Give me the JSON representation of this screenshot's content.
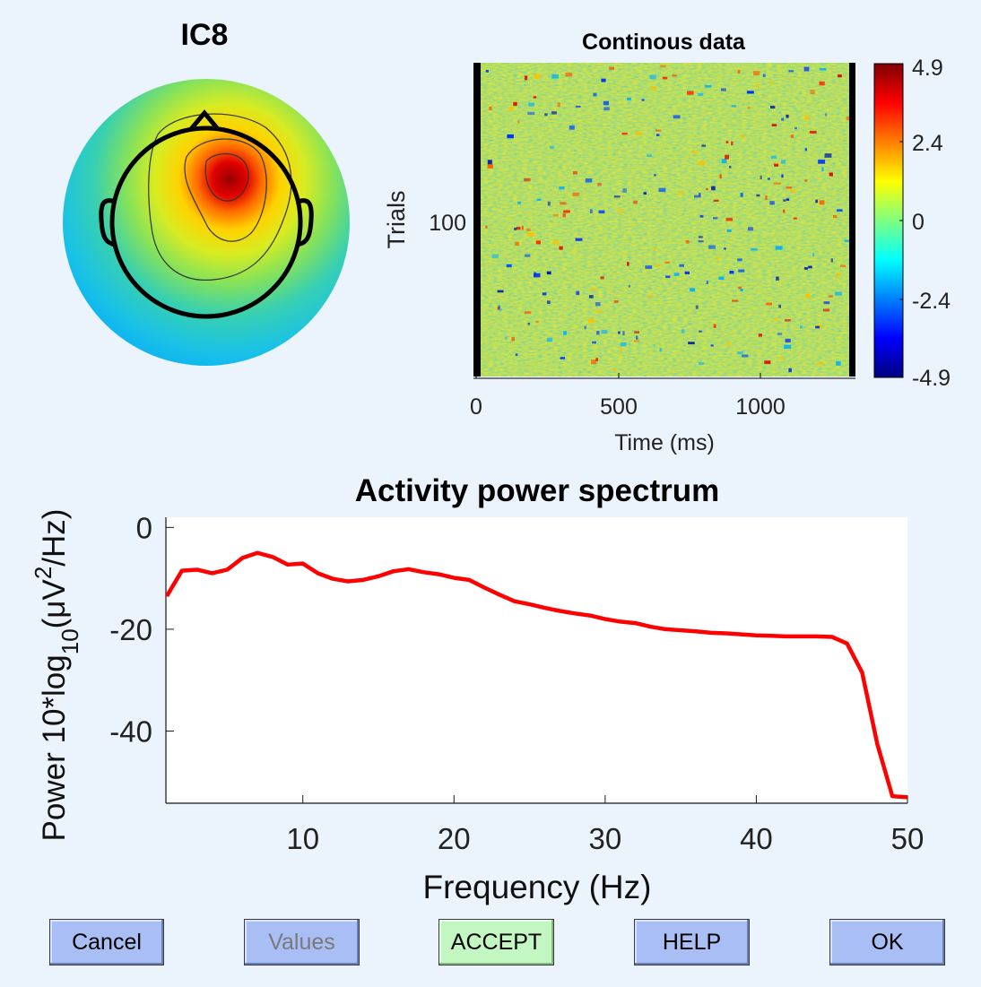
{
  "component": {
    "title": "IC8"
  },
  "erp_image": {
    "title": "Continous data",
    "ylabel": "Trials",
    "xlabel": "Time (ms)",
    "ytick": "100",
    "xticks": [
      "0",
      "500",
      "1000"
    ],
    "colorbar_ticks": [
      "4.9",
      "2.4",
      "0",
      "-2.4",
      "-4.9"
    ]
  },
  "spectrum": {
    "title": "Activity power spectrum",
    "xlabel": "Frequency (Hz)",
    "ylabel_parts": [
      "Power 10*log",
      "10",
      "(μV",
      "2",
      "/Hz)"
    ],
    "line_color": "#FF0000"
  },
  "buttons": {
    "cancel": "Cancel",
    "values": "Values",
    "accept": "ACCEPT",
    "help": "HELP",
    "ok": "OK"
  },
  "chart_data": [
    {
      "type": "line",
      "title": "Activity power spectrum",
      "xlabel": "Frequency (Hz)",
      "ylabel": "Power 10*log10(μV2/Hz)",
      "xlim": [
        1,
        50
      ],
      "ylim": [
        -54,
        2
      ],
      "xticks": [
        10,
        20,
        30,
        40,
        50
      ],
      "yticks": [
        0,
        -20,
        -40
      ],
      "series": [
        {
          "color": "#FF0000",
          "x": [
            1,
            2,
            3,
            4,
            5,
            6,
            7,
            8,
            9,
            10,
            11,
            12,
            13,
            14,
            15,
            16,
            17,
            18,
            19,
            20,
            21,
            22,
            23,
            24,
            25,
            26,
            27,
            28,
            29,
            30,
            31,
            32,
            33,
            34,
            35,
            36,
            37,
            38,
            39,
            40,
            41,
            42,
            43,
            44,
            45,
            46,
            47,
            48,
            49,
            50
          ],
          "y": [
            -13.5,
            -8.5,
            -8.3,
            -9,
            -8.3,
            -6,
            -5,
            -5.8,
            -7.3,
            -7.1,
            -9,
            -10.1,
            -10.6,
            -10.3,
            -9.6,
            -8.6,
            -8.2,
            -8.8,
            -9.2,
            -9.9,
            -10.3,
            -11.8,
            -13.2,
            -14.5,
            -15.1,
            -15.8,
            -16.4,
            -16.9,
            -17.3,
            -18,
            -18.5,
            -18.8,
            -19.5,
            -20,
            -20.2,
            -20.4,
            -20.7,
            -20.8,
            -21,
            -21.2,
            -21.3,
            -21.4,
            -21.4,
            -21.4,
            -21.5,
            -22.8,
            -28.5,
            -42.5,
            -52.8,
            -53
          ]
        }
      ]
    },
    {
      "type": "heatmap",
      "title": "Continous data",
      "xlabel": "Time (ms)",
      "ylabel": "Trials",
      "xlim": [
        0,
        1330
      ],
      "xticks": [
        0,
        500,
        1000
      ],
      "yticks": [
        100
      ],
      "clim": [
        -4.9,
        4.9
      ],
      "colorbar_ticks": [
        4.9,
        2.4,
        0,
        -2.4,
        -4.9
      ],
      "colormap": "jet"
    }
  ]
}
